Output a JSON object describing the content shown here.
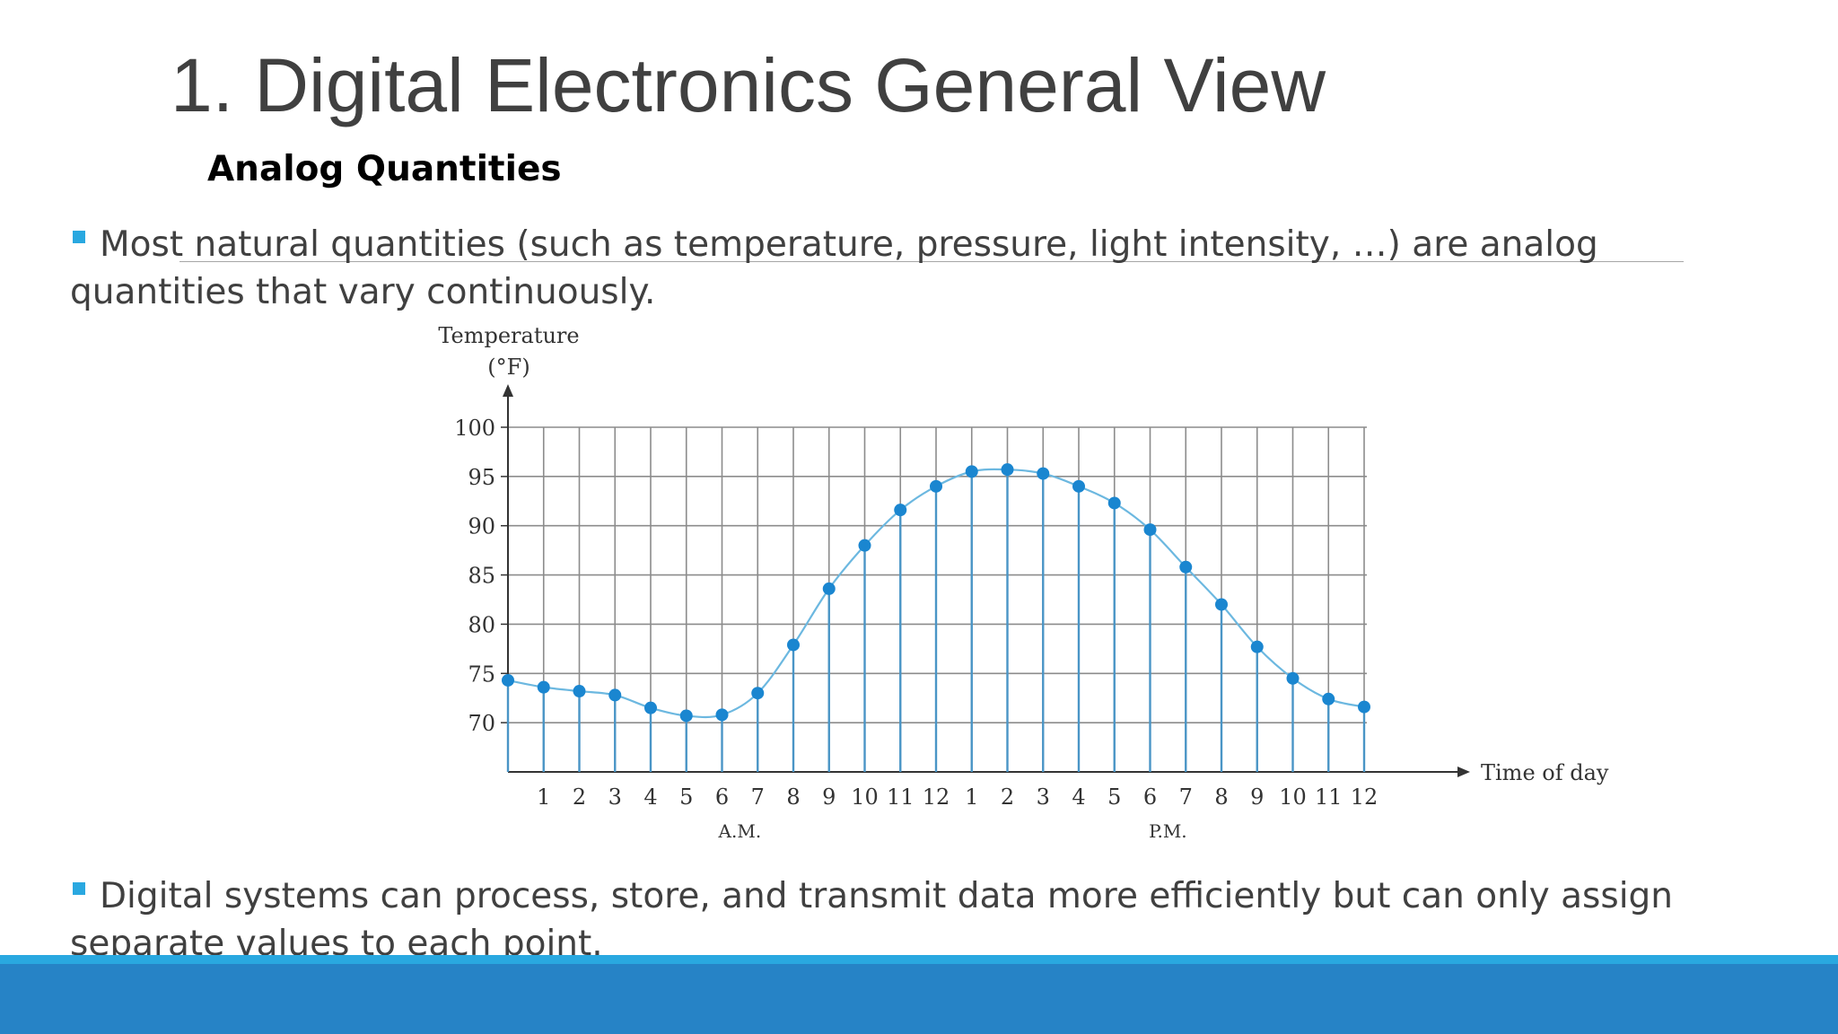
{
  "slide": {
    "title": "1. Digital Electronics General View",
    "subtitle": "Analog Quantities",
    "bullets": [
      "Most natural quantities (such as temperature, pressure, light intensity, …) are analog quantities that vary continuously.",
      "Digital systems can process, store, and transmit data more efficiently but can only assign separate values to each point."
    ]
  },
  "colors": {
    "accent": "#29a8e0",
    "footer": "#2683c6",
    "curve": "#6cb8e0",
    "points": "#1a86d0",
    "grid": "#8c8c8c",
    "text": "#404040"
  },
  "chart_data": {
    "type": "line",
    "ylabel_line1": "Temperature",
    "ylabel_line2": "(°F)",
    "xlabel": "Time of day",
    "group_labels": [
      "A.M.",
      "P.M."
    ],
    "y_ticks": [
      70,
      75,
      80,
      85,
      90,
      95,
      100
    ],
    "ylim": [
      65,
      100
    ],
    "grid": true,
    "x_ticks": [
      "1",
      "2",
      "3",
      "4",
      "5",
      "6",
      "7",
      "8",
      "9",
      "10",
      "11",
      "12",
      "1",
      "2",
      "3",
      "4",
      "5",
      "6",
      "7",
      "8",
      "9",
      "10",
      "11",
      "12"
    ],
    "series": [
      {
        "values": [
          74.3,
          73.6,
          73.2,
          72.8,
          71.5,
          70.7,
          70.8,
          73.0,
          77.9,
          83.6,
          88.0,
          91.6,
          94.0,
          95.5,
          95.7,
          95.3,
          94.0,
          92.3,
          89.6,
          85.8,
          82.0,
          77.7,
          74.5,
          72.4,
          71.6
        ]
      }
    ]
  }
}
